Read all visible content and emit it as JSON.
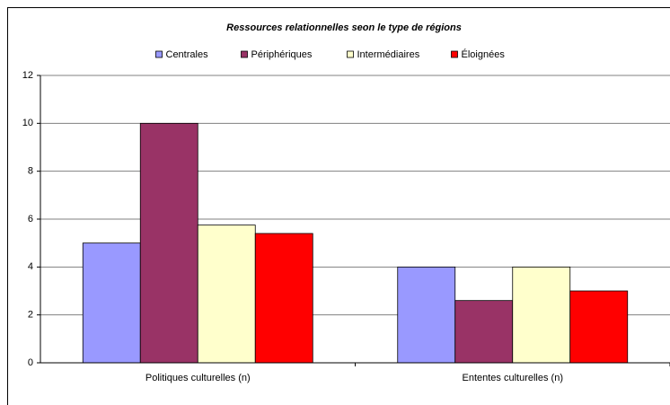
{
  "chart_data": {
    "type": "bar",
    "title": "Ressources relationnelles seon le type de régions",
    "categories": [
      "Politiques culturelles (n)",
      "Ententes culturelles (n)"
    ],
    "series": [
      {
        "name": "Centrales",
        "color": "#9999ff",
        "values": [
          5,
          4
        ]
      },
      {
        "name": "Périphériques",
        "color": "#993366",
        "values": [
          10,
          2.6
        ]
      },
      {
        "name": "Intermédiaires",
        "color": "#ffffcc",
        "values": [
          5.75,
          4
        ]
      },
      {
        "name": "Éloignées",
        "color": "#ff0000",
        "values": [
          5.4,
          3
        ]
      }
    ],
    "ylim": [
      0,
      12
    ],
    "yticks": [
      0,
      2,
      4,
      6,
      8,
      10,
      12
    ],
    "grid": true,
    "legend": "top"
  }
}
